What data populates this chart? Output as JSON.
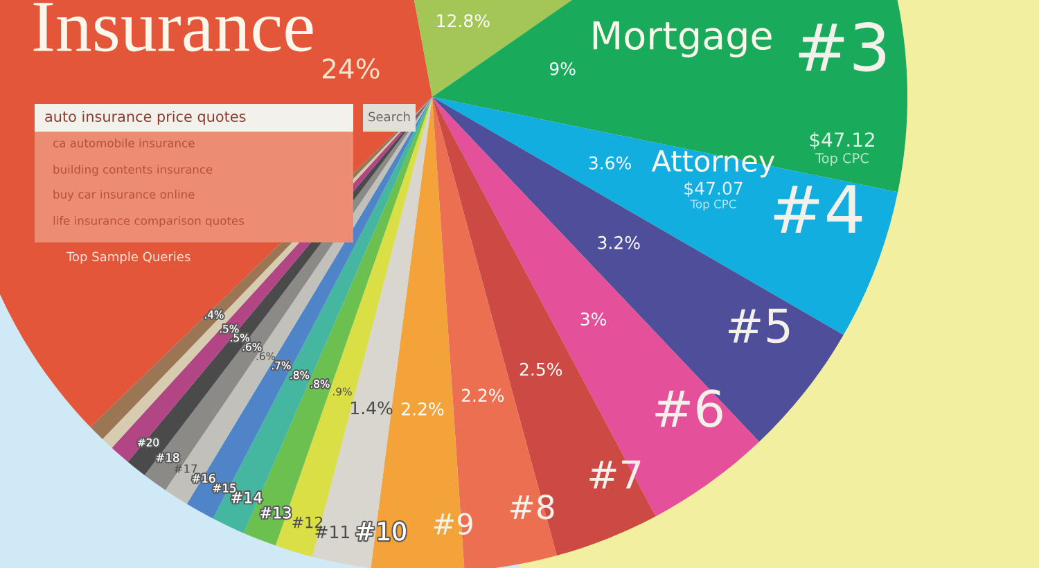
{
  "chart_data": {
    "type": "pie",
    "categories": [
      "Insurance",
      null,
      "Mortgage",
      "Attorney",
      null,
      null,
      null,
      null,
      null,
      null,
      null,
      null,
      null,
      null,
      null,
      null,
      null,
      null,
      null,
      null
    ],
    "values": [
      24,
      12.8,
      9,
      3.6,
      3.2,
      3,
      2.5,
      2.2,
      2.2,
      1.4,
      0.9,
      0.8,
      0.8,
      0.7,
      0.6,
      0.6,
      0.5,
      0.5,
      0.3,
      0.4
    ],
    "value_labels": [
      "24%",
      "12.8%",
      "9%",
      "3.6%",
      "3.2%",
      "3%",
      "2.5%",
      "2.2%",
      "2.2%",
      "1.4%",
      ".9%",
      ".8%",
      ".8%",
      ".7%",
      ".6%",
      ".6%",
      ".5%",
      ".5%",
      null,
      ".4%"
    ],
    "colors": [
      "#e4563a",
      "#a4c656",
      "#1aaa5c",
      "#12aee0",
      "#4f4e9a",
      "#e4509a",
      "#cc4a43",
      "#ec6f52",
      "#f3a33a",
      "#d9d6cf",
      "#d9df45",
      "#6cc050",
      "#45b6a0",
      "#4f85c8",
      "#c2c0bb",
      "#8c8a87",
      "#4a4a4a",
      "#b24583",
      "#d8ccb0",
      "#9a7655"
    ],
    "legend": false,
    "annotations": [
      "#3",
      "#4",
      "#5",
      "#6",
      "#7",
      "#8",
      "#9",
      "#10",
      "#11",
      "#12",
      "#13",
      "#14",
      "#15",
      "#16",
      "#17",
      "#18",
      "#20",
      "$47.12",
      "Top CPC",
      "$47.07",
      "Top CPC",
      "auto insurance price quotes",
      "Search",
      "ca automobile insurance",
      "building contents insurance",
      "buy car insurance online",
      "life insurance comparison quotes",
      "Top Sample Queries"
    ]
  }
}
